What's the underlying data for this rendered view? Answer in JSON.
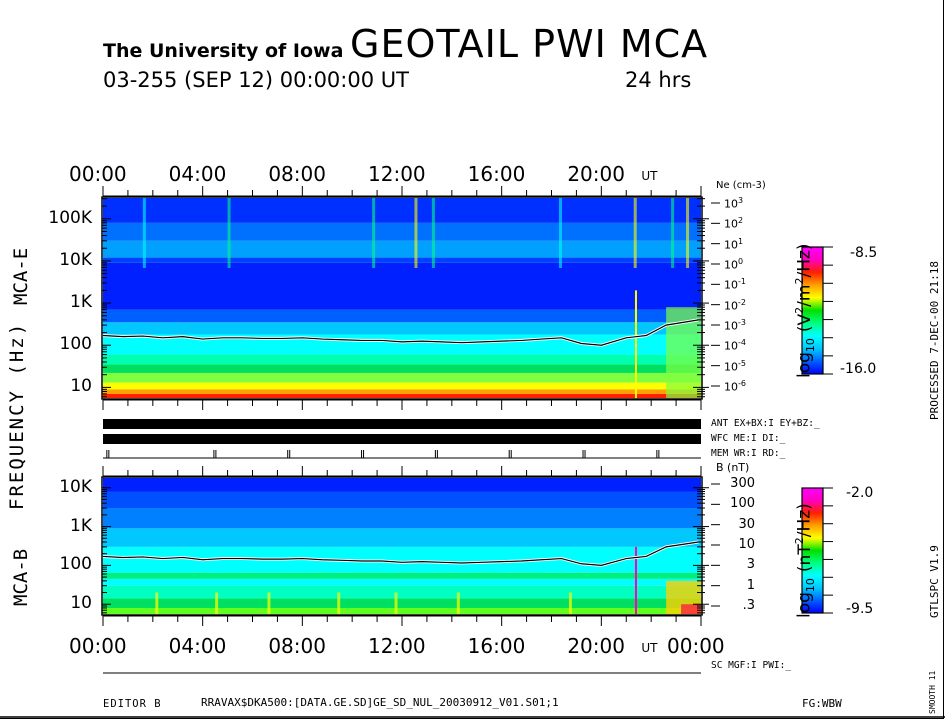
{
  "header": {
    "institution": "The University of Iowa",
    "title": "GEOTAIL PWI MCA",
    "date_line": "03-255 (SEP 12) 00:00:00 UT",
    "duration": "24 hrs"
  },
  "time_axis": {
    "ticks": [
      "00:00",
      "04:00",
      "08:00",
      "12:00",
      "16:00",
      "20:00"
    ],
    "end_tick": "00:00",
    "unit": "UT"
  },
  "y_label": "FREQUENCY (Hz)",
  "side_right": {
    "processed": "PROCESSED  7-DEC-00  21:18",
    "version": "GTLSPC  V1.9",
    "smooth": "SMOOTH 11"
  },
  "status_lines": {
    "ant": "ANT EX+BX:I EY+BZ:_",
    "wfc": "WFC ME:I    DI:_",
    "mem": "MEM WR:I    RD:_",
    "sc": "SC MGF:I   PWI:_"
  },
  "footer": {
    "editor": "EDITOR B",
    "file": "RRAVAX$DKA500:[DATA.GE.SD]GE_SD_NUL_20030912_V01.S01;1",
    "fg": "FG:WBW"
  },
  "colors": {
    "spectrum": [
      "#0000ff",
      "#0060ff",
      "#00c8ff",
      "#00ffff",
      "#00ff80",
      "#00e000",
      "#ffff00",
      "#ffa000",
      "#ff2000",
      "#ff00c0",
      "#ff00ff"
    ]
  },
  "chart_data": [
    {
      "type": "heatmap",
      "name": "MCA-E",
      "title": "MCA-E",
      "xlabel": "UT",
      "ylabel": "FREQUENCY (Hz)",
      "y_scale": "log",
      "ylim": [
        5.6,
        311000
      ],
      "xlim_hours": [
        0,
        24
      ],
      "y_ticks": [
        "10",
        "100",
        "1K",
        "10K",
        "100K"
      ],
      "y_tick_values": [
        10,
        100,
        1000,
        10000,
        100000
      ],
      "right_axis": {
        "label": "Ne (cm-3)",
        "ticks": [
          "10^3",
          "10^2",
          "10^1",
          "10^0",
          "10^-1",
          "10^-2",
          "10^-3",
          "10^-4",
          "10^-5",
          "10^-6"
        ],
        "tick_display": [
          [
            "10",
            "3"
          ],
          [
            "10",
            "2"
          ],
          [
            "10",
            "1"
          ],
          [
            "10",
            "0"
          ],
          [
            "10",
            "-1"
          ],
          [
            "10",
            "-2"
          ],
          [
            "10",
            "-3"
          ],
          [
            "10",
            "-4"
          ],
          [
            "10",
            "-5"
          ],
          [
            "10",
            "-6"
          ]
        ]
      },
      "colorbar": {
        "label": "log10 (V2/m2/Hz)",
        "label_parts": [
          "log",
          "10",
          "(V",
          "2",
          "/m",
          "2",
          "/Hz)"
        ],
        "max_label": "-8.5",
        "min_label": "-16.0",
        "range": [
          -16.0,
          -8.5
        ]
      },
      "plasma_line_hz": [
        170,
        160,
        165,
        150,
        160,
        140,
        150,
        150,
        145,
        145,
        150,
        140,
        135,
        130,
        130,
        120,
        125,
        120,
        115,
        120,
        125,
        130,
        140,
        150,
        110,
        100,
        150,
        170,
        300,
        400
      ],
      "overlay_times_h": [
        0,
        0.8,
        1.6,
        2.4,
        3.2,
        4,
        4.8,
        5.6,
        6.4,
        7.2,
        8,
        8.8,
        9.6,
        10.4,
        11.2,
        12,
        12.8,
        13.6,
        14.4,
        15.2,
        16,
        16.8,
        17.6,
        18.4,
        19.2,
        20,
        21,
        21.8,
        22.6,
        23.9
      ]
    },
    {
      "type": "heatmap",
      "name": "MCA-B",
      "title": "MCA-B",
      "xlabel": "UT",
      "ylabel": "FREQUENCY (Hz)",
      "y_scale": "log",
      "ylim": [
        5.6,
        17800
      ],
      "xlim_hours": [
        0,
        24
      ],
      "y_ticks": [
        "10",
        "100",
        "1K",
        "10K"
      ],
      "y_tick_values": [
        10,
        100,
        1000,
        10000
      ],
      "right_axis": {
        "label": "B (nT)",
        "ticks": [
          "300",
          "100",
          "30",
          "10",
          "3",
          "1",
          ".3"
        ]
      },
      "colorbar": {
        "label": "log10 (nT2/Hz)",
        "label_parts": [
          "log",
          "10",
          "(nT",
          "2",
          "/Hz)"
        ],
        "max_label": "-2.0",
        "min_label": "-9.5",
        "range": [
          -9.5,
          -2.0
        ]
      }
    }
  ]
}
